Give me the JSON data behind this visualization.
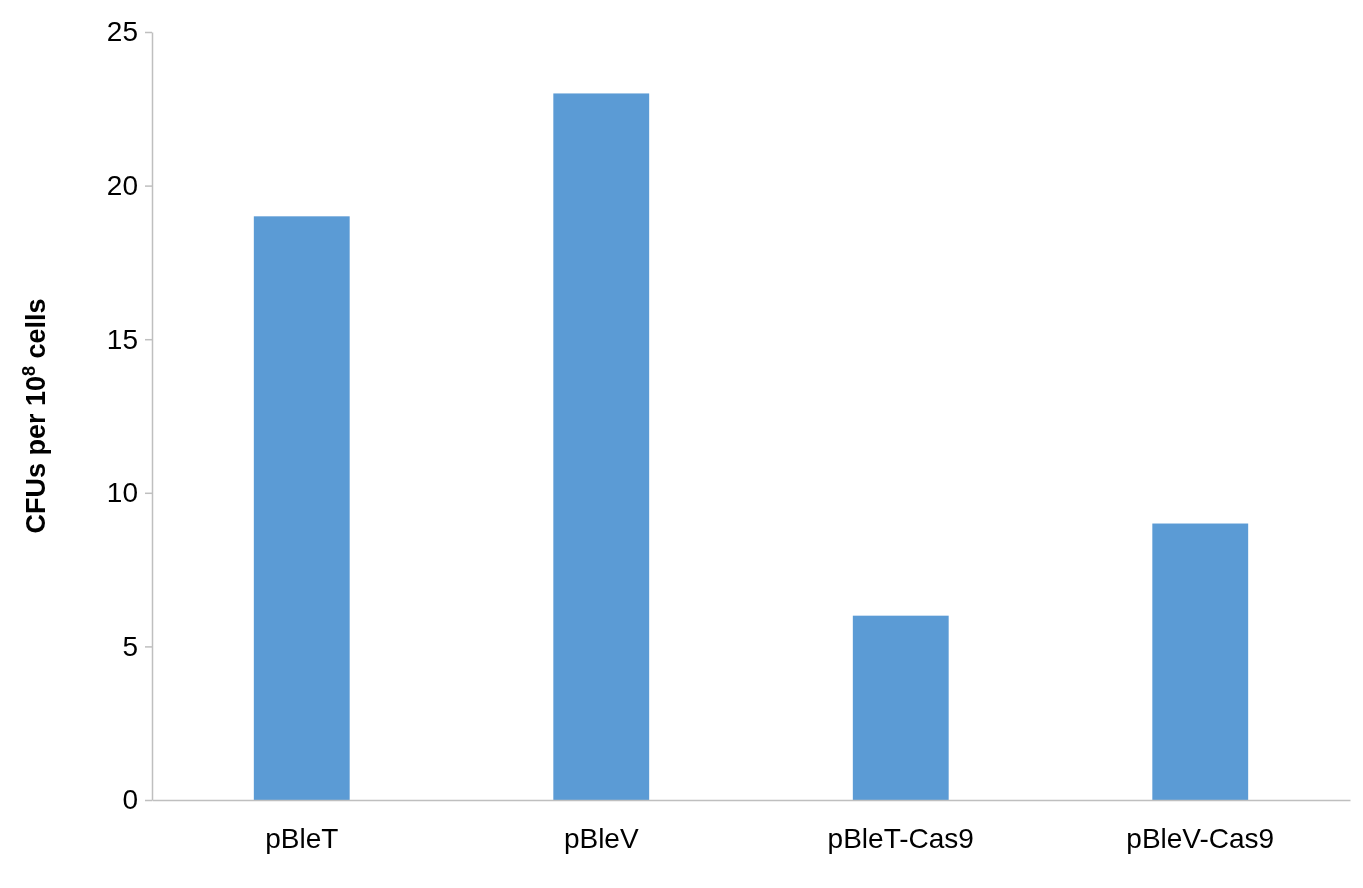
{
  "chart_data": {
    "type": "bar",
    "ylabel": "CFUs per 10$^{8}$ cells",
    "categories": [
      "pBleT",
      "pBleV",
      "pBleT-Cas9",
      "pBleV-Cas9"
    ],
    "values": [
      19,
      23,
      6,
      9
    ],
    "color": "#5b9bd5",
    "ylim": [
      0,
      25
    ],
    "yticks": [
      0,
      5,
      10,
      15,
      20,
      25
    ],
    "grid": false
  }
}
